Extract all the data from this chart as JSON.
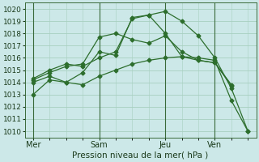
{
  "xlabel": "Pression niveau de la mer( hPa )",
  "ylim": [
    1009.5,
    1020.5
  ],
  "yticks": [
    1010,
    1011,
    1012,
    1013,
    1014,
    1015,
    1016,
    1017,
    1018,
    1019,
    1020
  ],
  "bg_color": "#cce8e8",
  "grid_color": "#a8cfc0",
  "line_color": "#2d6e2d",
  "xtick_labels": [
    "Mer",
    "Sam",
    "Jeu",
    "Ven"
  ],
  "xtick_positions": [
    0,
    4,
    8,
    11
  ],
  "vline_positions": [
    0,
    4,
    8,
    11
  ],
  "xlim": [
    -0.5,
    13.5
  ],
  "series": [
    {
      "x": [
        0,
        1,
        2,
        3,
        4,
        5,
        6,
        7,
        8,
        9,
        10,
        11,
        12,
        13
      ],
      "y": [
        1013.0,
        1014.2,
        1014.0,
        1013.8,
        1014.5,
        1015.0,
        1015.5,
        1015.8,
        1016.0,
        1016.1,
        1016.0,
        1015.8,
        1012.5,
        1010.0
      ]
    },
    {
      "x": [
        0,
        1,
        2,
        3,
        4,
        5,
        6,
        7,
        8,
        9,
        10,
        11,
        12,
        13
      ],
      "y": [
        1014.0,
        1014.5,
        1014.0,
        1014.8,
        1016.5,
        1016.2,
        1019.3,
        1019.5,
        1019.8,
        1019.0,
        1017.8,
        1016.0,
        1013.5,
        1010.0
      ]
    },
    {
      "x": [
        0,
        1,
        2,
        3,
        4,
        5,
        6,
        7,
        8,
        9,
        10,
        11,
        12
      ],
      "y": [
        1014.2,
        1014.8,
        1015.3,
        1015.5,
        1017.7,
        1018.0,
        1017.5,
        1017.2,
        1017.8,
        1016.5,
        1015.8,
        1015.6,
        1013.7
      ]
    },
    {
      "x": [
        0,
        1,
        2,
        3,
        4,
        5,
        6,
        7,
        8,
        9,
        10,
        11,
        12
      ],
      "y": [
        1014.3,
        1015.0,
        1015.5,
        1015.3,
        1016.0,
        1016.5,
        1019.2,
        1019.5,
        1018.0,
        1016.1,
        1015.8,
        1015.6,
        1013.8
      ]
    }
  ]
}
